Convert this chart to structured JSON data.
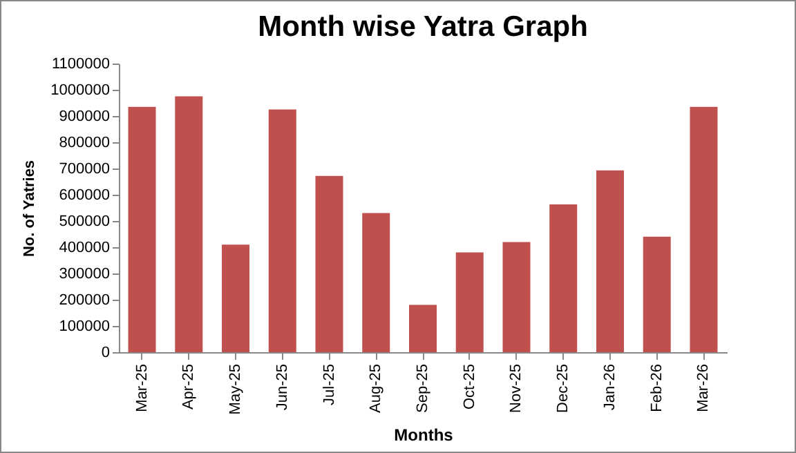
{
  "chart_data": {
    "type": "bar",
    "title": "Month wise Yatra Graph",
    "xlabel": "Months",
    "ylabel": "No. of Yatries",
    "categories": [
      "Mar-25",
      "Apr-25",
      "May-25",
      "Jun-25",
      "Jul-25",
      "Aug-25",
      "Sep-25",
      "Oct-25",
      "Nov-25",
      "Dec-25",
      "Jan-26",
      "Feb-26",
      "Mar-26"
    ],
    "values": [
      935000,
      975000,
      410000,
      925000,
      672000,
      530000,
      180000,
      380000,
      420000,
      563000,
      693000,
      440000,
      935000
    ],
    "color": "#c0504d",
    "ylim": [
      0,
      1100000
    ],
    "yticks": [
      0,
      100000,
      200000,
      300000,
      400000,
      500000,
      600000,
      700000,
      800000,
      900000,
      1000000,
      1100000
    ],
    "grid": false
  }
}
